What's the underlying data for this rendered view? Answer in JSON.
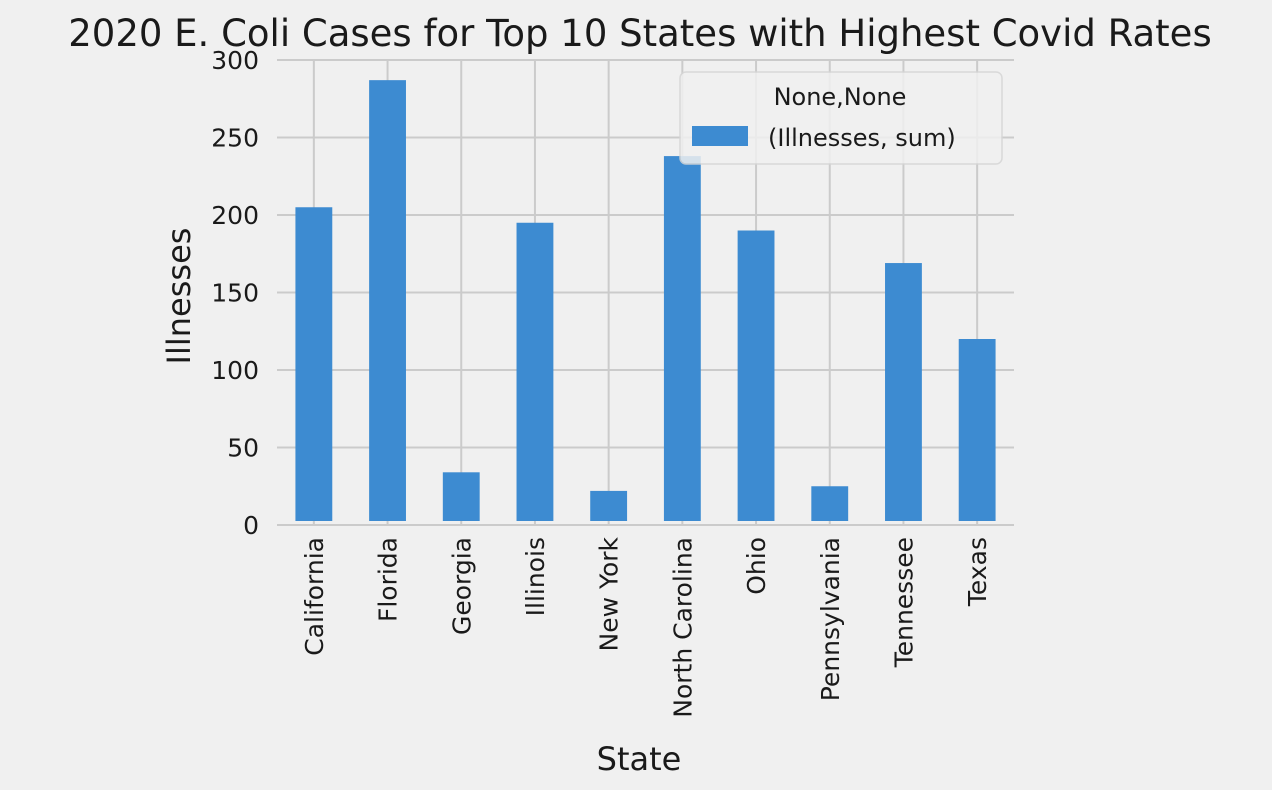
{
  "chart_data": {
    "type": "bar",
    "title": "2020 E. Coli Cases for Top 10 States with Highest Covid Rates",
    "xlabel": "State",
    "ylabel": "Illnesses",
    "categories": [
      "California",
      "Florida",
      "Georgia",
      "Illinois",
      "New York",
      "North Carolina",
      "Ohio",
      "Pennsylvania",
      "Tennessee",
      "Texas"
    ],
    "series": [
      {
        "name": "(Illnesses, sum)",
        "values": [
          205,
          287,
          34,
          195,
          22,
          238,
          190,
          25,
          169,
          120
        ],
        "color": "#3d8bd1"
      }
    ],
    "ylim": [
      0,
      300
    ],
    "yticks": [
      0,
      50,
      100,
      150,
      200,
      250,
      300
    ],
    "legend": {
      "title": "None,None",
      "placement": "top-right"
    },
    "grid": true,
    "colors": {
      "background": "#f0f0f0",
      "grid": "#cbcbcb",
      "bar": "#3d8bd1"
    }
  }
}
